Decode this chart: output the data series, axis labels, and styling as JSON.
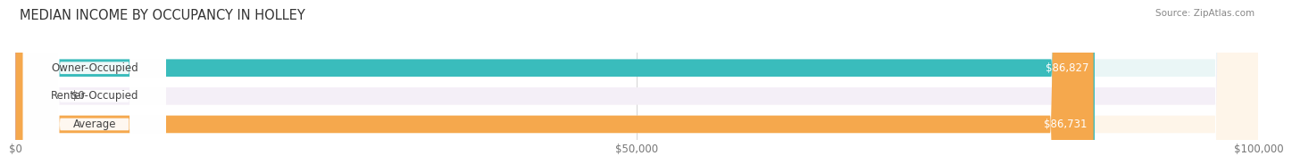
{
  "title": "MEDIAN INCOME BY OCCUPANCY IN HOLLEY",
  "source": "Source: ZipAtlas.com",
  "categories": [
    "Owner-Occupied",
    "Renter-Occupied",
    "Average"
  ],
  "values": [
    86827,
    0,
    86731
  ],
  "bar_colors": [
    "#3abcbc",
    "#c8a8d3",
    "#f5a84d"
  ],
  "bar_bg_colors": [
    "#eaf6f6",
    "#f4eff7",
    "#fef5e9"
  ],
  "value_labels": [
    "$86,827",
    "$0",
    "$86,731"
  ],
  "xlim": [
    0,
    100000
  ],
  "xticks": [
    0,
    50000,
    100000
  ],
  "xtick_labels": [
    "$0",
    "$50,000",
    "$100,000"
  ],
  "label_fontsize": 8.5,
  "title_fontsize": 10.5,
  "source_fontsize": 7.5,
  "bar_height": 0.62,
  "background_color": "#ffffff",
  "renter_small_bar_width": 3000
}
